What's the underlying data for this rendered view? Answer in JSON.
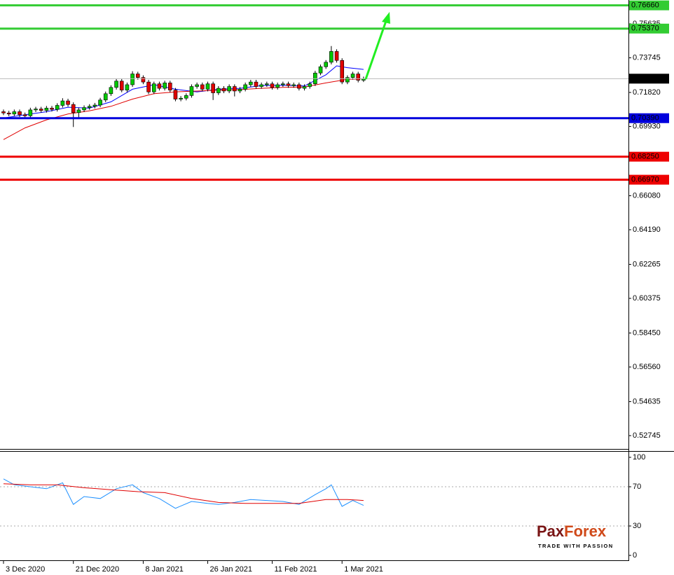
{
  "chart_data": [
    {
      "type": "candlestick",
      "categories": [
        "3 Dec 2020",
        null,
        null,
        null,
        null,
        null,
        null,
        null,
        null,
        null,
        null,
        null,
        null,
        "21 Dec 2020",
        null,
        null,
        null,
        null,
        null,
        null,
        null,
        null,
        null,
        null,
        null,
        null,
        "8 Jan 2021",
        null,
        null,
        null,
        null,
        null,
        null,
        null,
        null,
        null,
        null,
        null,
        "26 Jan 2021",
        null,
        null,
        null,
        null,
        null,
        null,
        null,
        null,
        null,
        null,
        null,
        "11 Feb 2021",
        null,
        null,
        null,
        null,
        null,
        null,
        null,
        null,
        null,
        null,
        null,
        null,
        "1 Mar 2021",
        null,
        null,
        null,
        null
      ],
      "candles": [
        [
          0.7075,
          0.7087,
          0.7056,
          0.7068
        ],
        [
          0.7068,
          0.708,
          0.705,
          0.7062
        ],
        [
          0.7062,
          0.7087,
          0.705,
          0.7075
        ],
        [
          0.7075,
          0.7087,
          0.7046,
          0.7058
        ],
        [
          0.7058,
          0.707,
          0.704,
          0.7052
        ],
        [
          0.7052,
          0.7097,
          0.704,
          0.7085
        ],
        [
          0.7085,
          0.7102,
          0.7073,
          0.709
        ],
        [
          0.709,
          0.7102,
          0.707,
          0.7082
        ],
        [
          0.7082,
          0.7107,
          0.707,
          0.7095
        ],
        [
          0.7095,
          0.7107,
          0.7076,
          0.7088
        ],
        [
          0.7088,
          0.7122,
          0.7076,
          0.711
        ],
        [
          0.711,
          0.715,
          0.7098,
          0.7135
        ],
        [
          0.7135,
          0.7147,
          0.7103,
          0.7115
        ],
        [
          0.7115,
          0.7127,
          0.699,
          0.707
        ],
        [
          0.707,
          0.7097,
          0.704,
          0.7085
        ],
        [
          0.7085,
          0.711,
          0.7073,
          0.7098
        ],
        [
          0.7098,
          0.7117,
          0.7086,
          0.7105
        ],
        [
          0.7105,
          0.7124,
          0.7093,
          0.7112
        ],
        [
          0.7112,
          0.7152,
          0.71,
          0.714
        ],
        [
          0.714,
          0.7187,
          0.7128,
          0.7175
        ],
        [
          0.7175,
          0.7222,
          0.7163,
          0.721
        ],
        [
          0.721,
          0.7257,
          0.7198,
          0.7245
        ],
        [
          0.7245,
          0.7257,
          0.7183,
          0.7195
        ],
        [
          0.7195,
          0.7237,
          0.7183,
          0.7225
        ],
        [
          0.7225,
          0.73,
          0.7213,
          0.7285
        ],
        [
          0.7285,
          0.7297,
          0.7253,
          0.7265
        ],
        [
          0.7265,
          0.7277,
          0.7228,
          0.724
        ],
        [
          0.724,
          0.7252,
          0.7173,
          0.7185
        ],
        [
          0.7185,
          0.7242,
          0.7173,
          0.723
        ],
        [
          0.723,
          0.7242,
          0.7193,
          0.7205
        ],
        [
          0.7205,
          0.7247,
          0.7193,
          0.7235
        ],
        [
          0.7235,
          0.7247,
          0.7183,
          0.7195
        ],
        [
          0.7195,
          0.7207,
          0.7133,
          0.7145
        ],
        [
          0.7145,
          0.7162,
          0.7133,
          0.715
        ],
        [
          0.715,
          0.7177,
          0.7138,
          0.7165
        ],
        [
          0.7165,
          0.7227,
          0.7153,
          0.7215
        ],
        [
          0.7215,
          0.7237,
          0.7203,
          0.7225
        ],
        [
          0.7225,
          0.7237,
          0.7188,
          0.72
        ],
        [
          0.72,
          0.7242,
          0.7188,
          0.723
        ],
        [
          0.723,
          0.7242,
          0.714,
          0.718
        ],
        [
          0.718,
          0.7217,
          0.7168,
          0.7205
        ],
        [
          0.7205,
          0.7217,
          0.7178,
          0.719
        ],
        [
          0.719,
          0.7227,
          0.7178,
          0.7215
        ],
        [
          0.7215,
          0.7227,
          0.716,
          0.719
        ],
        [
          0.719,
          0.7212,
          0.7178,
          0.72
        ],
        [
          0.72,
          0.7237,
          0.7188,
          0.7225
        ],
        [
          0.7225,
          0.7252,
          0.7213,
          0.724
        ],
        [
          0.724,
          0.7252,
          0.7203,
          0.7215
        ],
        [
          0.7215,
          0.7237,
          0.7203,
          0.7225
        ],
        [
          0.7225,
          0.7242,
          0.7213,
          0.723
        ],
        [
          0.723,
          0.7242,
          0.7198,
          0.721
        ],
        [
          0.721,
          0.7237,
          0.7198,
          0.7225
        ],
        [
          0.7225,
          0.7242,
          0.7213,
          0.723
        ],
        [
          0.723,
          0.7242,
          0.7208,
          0.722
        ],
        [
          0.722,
          0.7237,
          0.7208,
          0.7225
        ],
        [
          0.7225,
          0.7237,
          0.7193,
          0.7205
        ],
        [
          0.7205,
          0.7227,
          0.7193,
          0.7215
        ],
        [
          0.7215,
          0.7242,
          0.7203,
          0.723
        ],
        [
          0.723,
          0.7302,
          0.7218,
          0.729
        ],
        [
          0.729,
          0.7337,
          0.7278,
          0.7325
        ],
        [
          0.7325,
          0.7362,
          0.7313,
          0.735
        ],
        [
          0.735,
          0.744,
          0.7338,
          0.741
        ],
        [
          0.741,
          0.7422,
          0.7348,
          0.736
        ],
        [
          0.736,
          0.7372,
          0.7228,
          0.724
        ],
        [
          0.724,
          0.7277,
          0.7228,
          0.7265
        ],
        [
          0.7265,
          0.7297,
          0.7253,
          0.7285
        ],
        [
          0.7285,
          0.7297,
          0.7238,
          0.725
        ],
        [
          0.725,
          0.727,
          0.724,
          0.72586
        ]
      ],
      "up_color": "#00c800",
      "down_color": "#e00000",
      "lines": [
        {
          "color": "#0000ff",
          "x": [
            0,
            4,
            8,
            12,
            16,
            20,
            24,
            28,
            32,
            36,
            40,
            44,
            48,
            52,
            56,
            60,
            62,
            64,
            67
          ],
          "values": [
            0.704,
            0.7058,
            0.7075,
            0.71,
            0.7095,
            0.713,
            0.72,
            0.7225,
            0.72,
            0.7185,
            0.72,
            0.7205,
            0.722,
            0.7222,
            0.7218,
            0.728,
            0.733,
            0.732,
            0.731
          ]
        },
        {
          "color": "#e00000",
          "x": [
            0,
            4,
            8,
            12,
            16,
            20,
            24,
            28,
            32,
            36,
            40,
            44,
            48,
            52,
            56,
            60,
            64,
            67
          ],
          "values": [
            0.692,
            0.6985,
            0.703,
            0.7062,
            0.708,
            0.7105,
            0.7145,
            0.7175,
            0.7185,
            0.719,
            0.7195,
            0.7198,
            0.7205,
            0.721,
            0.7212,
            0.7235,
            0.7255,
            0.7258
          ]
        }
      ],
      "ylim": [
        0.52044,
        0.76959
      ],
      "yticks": [
        0.75635,
        0.73745,
        {
          "value": 0.7182,
          "label": "0.71820"
        },
        {
          "value": 0.6993,
          "label": "0.69930"
        },
        {
          "value": 0.6608,
          "label": "0.66080"
        },
        {
          "value": 0.6419,
          "label": "0.64190"
        },
        0.62265,
        0.60375,
        {
          "value": 0.5845,
          "label": "0.58450"
        },
        {
          "value": 0.5656,
          "label": "0.56560"
        },
        0.54635,
        0.52745
      ],
      "levels": [
        {
          "value": 0.7666,
          "label": "0.76660",
          "color": "#33cc33",
          "text_color": "#000000"
        },
        {
          "value": 0.7537,
          "label": "0.75370",
          "color": "#33cc33",
          "text_color": "#000000"
        },
        {
          "value": 0.7039,
          "label": "0.70390",
          "color": "#0000dd",
          "text_color": "#ffffff"
        },
        {
          "value": 0.6825,
          "label": "0.68250",
          "color": "#ee0000",
          "text_color": "#ffffff"
        },
        {
          "value": 0.6697,
          "label": "0.66970",
          "color": "#ee0000",
          "text_color": "#ffffff"
        }
      ],
      "last_price": 0.72586
    },
    {
      "type": "line",
      "ylim": [
        -5,
        105.7
      ],
      "yticks": [
        100,
        70,
        30,
        0
      ],
      "series": [
        {
          "color": "#1e90ff",
          "x": [
            0,
            2,
            5,
            8,
            11,
            13,
            15,
            18,
            21,
            24,
            26,
            29,
            32,
            35,
            38,
            40,
            43,
            46,
            49,
            52,
            55,
            58,
            60,
            61,
            63,
            65,
            67
          ],
          "values": [
            78,
            72,
            70,
            68,
            74,
            52,
            60,
            58,
            68,
            72,
            64,
            58,
            48,
            55,
            53,
            52,
            54,
            57,
            56,
            55,
            52,
            62,
            68,
            72,
            50,
            56,
            51
          ]
        },
        {
          "color": "#e00000",
          "x": [
            0,
            5,
            10,
            15,
            20,
            25,
            30,
            35,
            40,
            45,
            50,
            55,
            60,
            64,
            67
          ],
          "values": [
            73,
            72,
            72,
            69,
            67,
            65,
            64,
            58,
            54,
            53,
            53,
            53,
            57,
            57,
            56
          ]
        }
      ]
    }
  ],
  "logo": {
    "part1": "Pax",
    "part2": "Forex",
    "tagline": "TRADE WITH PASSION"
  }
}
